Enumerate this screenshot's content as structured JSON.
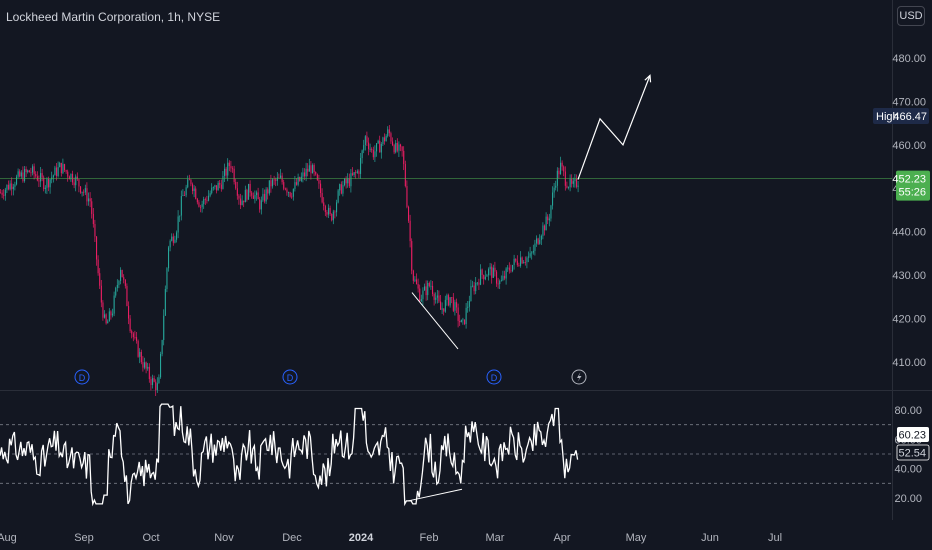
{
  "header": {
    "title": "Lockheed Martin Corporation, 1h, NYSE",
    "currency_button": "USD"
  },
  "markers": {
    "dividend_label": "D",
    "earnings_icon": "lightning-icon"
  },
  "colors": {
    "background": "#131722",
    "up": "#26a69a",
    "down": "#e91e63",
    "grid": "#2a2e39",
    "price_line": "#4caf50",
    "rsi": "#ffffff",
    "high_tag": "#1e2a48"
  },
  "chart_data": {
    "type": "candlestick",
    "title": "Lockheed Martin Corporation, 1h, NYSE",
    "price_axis": {
      "ticks": [
        410,
        420,
        430,
        440,
        450,
        460,
        470,
        480
      ],
      "tick_labels": [
        "410.00",
        "420.00",
        "430.00",
        "440.00",
        "450.00",
        "460.00",
        "470.00",
        "480.00"
      ],
      "ylim": [
        404,
        490
      ]
    },
    "time_axis": {
      "labels": [
        "Aug",
        "Sep",
        "Oct",
        "Nov",
        "Dec",
        "2024",
        "Feb",
        "Mar",
        "Apr",
        "May",
        "Jun",
        "Jul"
      ],
      "bold_label": "2024"
    },
    "current_price": {
      "value": 452.23,
      "label": "452.23",
      "countdown": "55:26"
    },
    "high_marker": {
      "label": "High",
      "value": "466.47"
    },
    "price_path": [
      [
        0,
        449
      ],
      [
        15,
        452
      ],
      [
        30,
        454
      ],
      [
        45,
        451
      ],
      [
        60,
        455
      ],
      [
        75,
        452
      ],
      [
        90,
        447
      ],
      [
        100,
        425
      ],
      [
        105,
        418
      ],
      [
        112,
        422
      ],
      [
        120,
        432
      ],
      [
        125,
        426
      ],
      [
        130,
        418
      ],
      [
        135,
        414
      ],
      [
        142,
        410
      ],
      [
        150,
        406
      ],
      [
        158,
        404
      ],
      [
        168,
        437
      ],
      [
        175,
        440
      ],
      [
        182,
        448
      ],
      [
        190,
        452
      ],
      [
        200,
        446
      ],
      [
        210,
        449
      ],
      [
        220,
        451
      ],
      [
        230,
        456
      ],
      [
        240,
        447
      ],
      [
        250,
        450
      ],
      [
        260,
        446
      ],
      [
        270,
        451
      ],
      [
        280,
        452
      ],
      [
        290,
        449
      ],
      [
        300,
        452
      ],
      [
        310,
        455
      ],
      [
        320,
        449
      ],
      [
        330,
        443
      ],
      [
        340,
        450
      ],
      [
        350,
        452
      ],
      [
        358,
        454
      ],
      [
        365,
        462
      ],
      [
        372,
        458
      ],
      [
        380,
        460
      ],
      [
        388,
        463
      ],
      [
        395,
        459
      ],
      [
        402,
        458
      ],
      [
        408,
        443
      ],
      [
        412,
        430
      ],
      [
        420,
        425
      ],
      [
        430,
        428
      ],
      [
        440,
        422
      ],
      [
        450,
        425
      ],
      [
        458,
        420
      ],
      [
        462,
        418
      ],
      [
        470,
        426
      ],
      [
        480,
        430
      ],
      [
        490,
        431
      ],
      [
        500,
        428
      ],
      [
        510,
        432
      ],
      [
        520,
        434
      ],
      [
        530,
        434
      ],
      [
        540,
        440
      ],
      [
        548,
        443
      ],
      [
        555,
        452
      ],
      [
        560,
        455
      ],
      [
        565,
        452
      ],
      [
        572,
        450
      ],
      [
        578,
        452
      ]
    ],
    "projection_path": [
      [
        578,
        452
      ],
      [
        600,
        466
      ],
      [
        623,
        460
      ],
      [
        650,
        476
      ]
    ],
    "divergence_line": [
      [
        412,
        426
      ],
      [
        458,
        413
      ]
    ],
    "dividend_marker_x": [
      82,
      290,
      494
    ],
    "earnings_marker_x": [
      579
    ],
    "rsi": {
      "ticks": [
        20,
        40,
        60,
        80
      ],
      "tick_labels": [
        "20.00",
        "40.00",
        "60.00",
        "80.00"
      ],
      "band_upper": 70,
      "band_mid": 50,
      "band_lower": 30,
      "ylim": [
        10,
        90
      ],
      "current_value_label": "60.23",
      "ma_value_label": "52.54",
      "divergence_line": [
        [
          408,
          18
        ],
        [
          462,
          26
        ]
      ]
    }
  }
}
